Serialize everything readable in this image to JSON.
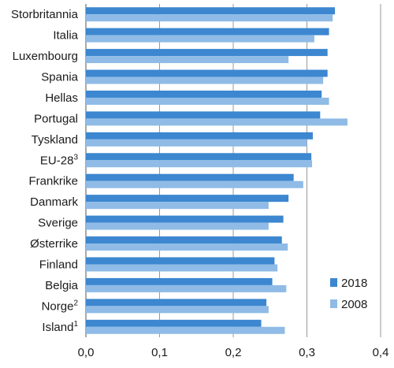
{
  "chart_data": {
    "type": "bar",
    "orientation": "horizontal",
    "categories": [
      {
        "name": "Storbritannia",
        "sup": ""
      },
      {
        "name": "Italia",
        "sup": ""
      },
      {
        "name": "Luxembourg",
        "sup": ""
      },
      {
        "name": "Spania",
        "sup": ""
      },
      {
        "name": "Hellas",
        "sup": ""
      },
      {
        "name": "Portugal",
        "sup": ""
      },
      {
        "name": "Tyskland",
        "sup": ""
      },
      {
        "name": "EU-28",
        "sup": "3"
      },
      {
        "name": "Frankrike",
        "sup": ""
      },
      {
        "name": "Danmark",
        "sup": ""
      },
      {
        "name": "Sverige",
        "sup": ""
      },
      {
        "name": "Østerrike",
        "sup": ""
      },
      {
        "name": "Finland",
        "sup": ""
      },
      {
        "name": "Belgia",
        "sup": ""
      },
      {
        "name": "Norge",
        "sup": "2"
      },
      {
        "name": "Island",
        "sup": "1"
      }
    ],
    "series": [
      {
        "name": "2018",
        "color": "#3c87d0",
        "values": [
          0.338,
          0.33,
          0.328,
          0.328,
          0.32,
          0.318,
          0.308,
          0.306,
          0.282,
          0.275,
          0.268,
          0.266,
          0.256,
          0.253,
          0.245,
          0.238
        ]
      },
      {
        "name": "2008",
        "color": "#8fbbe6",
        "values": [
          0.335,
          0.31,
          0.275,
          0.322,
          0.33,
          0.355,
          0.3,
          0.307,
          0.295,
          0.248,
          0.248,
          0.274,
          0.26,
          0.272,
          0.248,
          0.27
        ]
      }
    ],
    "xlim": [
      0,
      0.4
    ],
    "xticks": [
      "0,0",
      "0,1",
      "0,2",
      "0,3",
      "0,4"
    ],
    "grid": "vertical",
    "legend_position": "bottom-right",
    "colors": {
      "grid": "#999999",
      "axis": "#555555"
    }
  }
}
